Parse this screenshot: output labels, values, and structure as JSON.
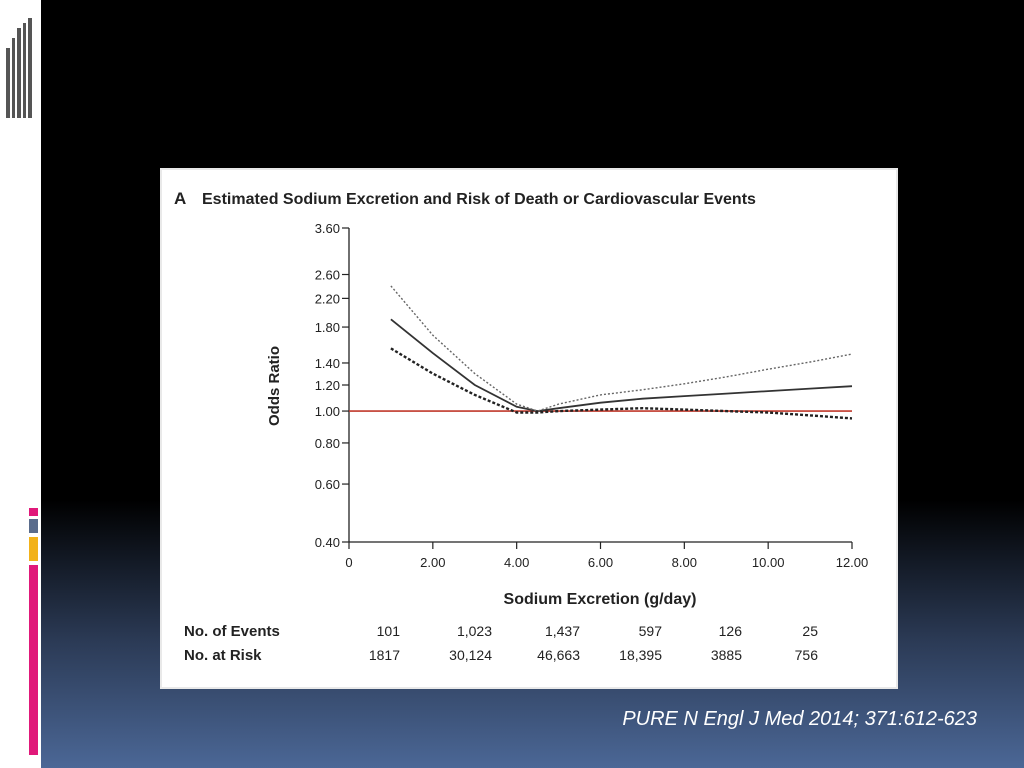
{
  "slide": {
    "citation": "PURE N Engl J Med 2014; 371:612-623",
    "background_top": "#000000",
    "background_bottom": "#4b6796",
    "accent_colors": [
      "#e0197a",
      "#5a6c8c",
      "#f2b21a",
      "#e0197a"
    ]
  },
  "chart_data": {
    "type": "line",
    "panel_label": "A",
    "title": "Estimated Sodium Excretion and Risk of Death or Cardiovascular Events",
    "xlabel": "Sodium Excretion (g/day)",
    "ylabel": "Odds Ratio",
    "y_scale": "log",
    "xlim": [
      0,
      12
    ],
    "ylim": [
      0.4,
      3.6
    ],
    "x_ticks": [
      0,
      2,
      4,
      6,
      8,
      10,
      12
    ],
    "x_tick_labels": [
      "0",
      "2.00",
      "4.00",
      "6.00",
      "8.00",
      "10.00",
      "12.00"
    ],
    "y_ticks": [
      0.4,
      0.6,
      0.8,
      1.0,
      1.2,
      1.4,
      1.8,
      2.2,
      2.6,
      3.6
    ],
    "y_tick_labels": [
      "0.40",
      "0.60",
      "0.80",
      "1.00",
      "1.20",
      "1.40",
      "1.80",
      "2.20",
      "2.60",
      "3.60"
    ],
    "reference_line": {
      "y": 1.0,
      "color": "#c0392b"
    },
    "series": [
      {
        "style": "solid",
        "color": "#333333",
        "x": [
          1,
          2,
          3,
          4,
          4.5,
          5,
          6,
          7,
          8,
          9,
          10,
          11,
          12
        ],
        "y": [
          1.9,
          1.5,
          1.2,
          1.03,
          1.0,
          1.02,
          1.06,
          1.09,
          1.11,
          1.13,
          1.15,
          1.17,
          1.19
        ]
      },
      {
        "style": "dotted-upper",
        "color": "#666666",
        "x": [
          1,
          2,
          3,
          4,
          4.5,
          5,
          6,
          7,
          8,
          9,
          10,
          11,
          12
        ],
        "y": [
          2.4,
          1.7,
          1.3,
          1.05,
          1.0,
          1.05,
          1.12,
          1.16,
          1.21,
          1.27,
          1.34,
          1.41,
          1.49
        ]
      },
      {
        "style": "dotted-lower",
        "color": "#222222",
        "x": [
          1,
          2,
          3,
          4,
          4.5,
          5,
          6,
          7,
          8,
          9,
          10,
          11,
          12
        ],
        "y": [
          1.55,
          1.3,
          1.12,
          0.99,
          0.99,
          1.0,
          1.01,
          1.02,
          1.01,
          1.0,
          0.99,
          0.97,
          0.95
        ]
      }
    ],
    "risk_table": {
      "rows": [
        {
          "label": "No. of Events",
          "values": [
            "101",
            "1,023",
            "1,437",
            "597",
            "126",
            "25"
          ]
        },
        {
          "label": "No. at Risk",
          "values": [
            "1817",
            "30,124",
            "46,663",
            "18,395",
            "3885",
            "756"
          ]
        }
      ]
    }
  }
}
